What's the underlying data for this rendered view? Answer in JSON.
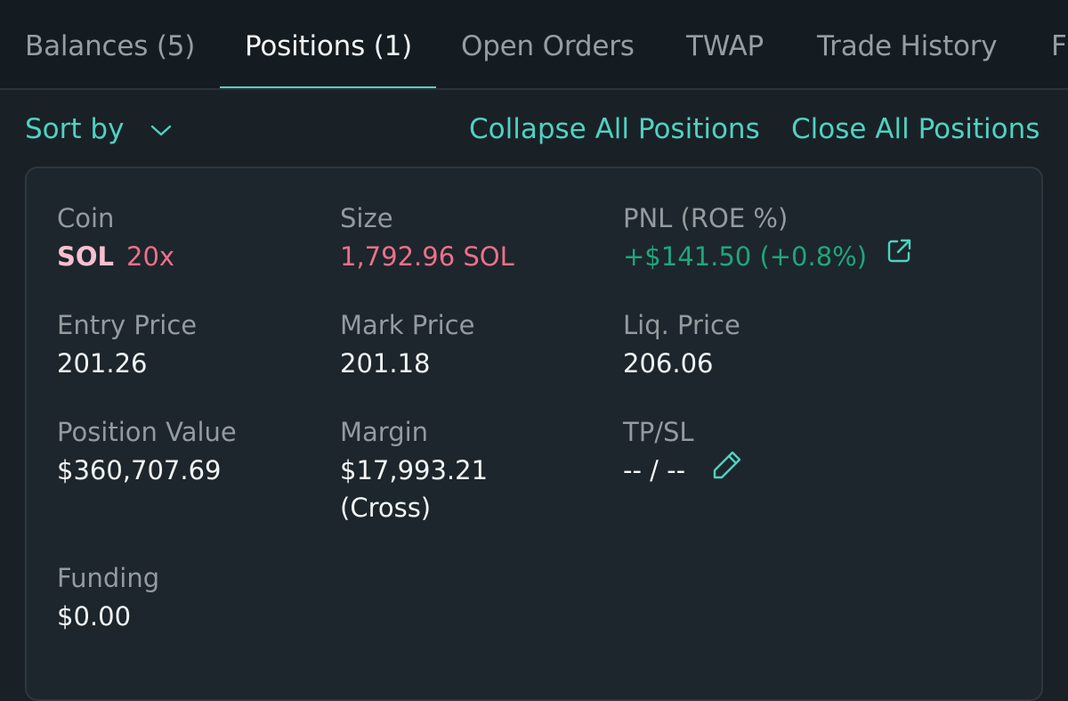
{
  "tabs": [
    {
      "label": "Balances (5)"
    },
    {
      "label": "Positions (1)"
    },
    {
      "label": "Open Orders"
    },
    {
      "label": "TWAP"
    },
    {
      "label": "Trade History"
    },
    {
      "label": "F"
    }
  ],
  "active_tab": "Positions (1)",
  "toolbar": {
    "sort_label": "Sort by",
    "collapse_label": "Collapse All Positions",
    "close_label": "Close All Positions"
  },
  "position": {
    "coin": {
      "label": "Coin",
      "symbol": "SOL",
      "leverage": "20x"
    },
    "size": {
      "label": "Size",
      "value": "1,792.96 SOL"
    },
    "pnl": {
      "label": "PNL (ROE %)",
      "value": "+$141.50 (+0.8%)"
    },
    "entry_price": {
      "label": "Entry Price",
      "value": "201.26"
    },
    "mark_price": {
      "label": "Mark Price",
      "value": "201.18"
    },
    "liq_price": {
      "label": "Liq. Price",
      "value": "206.06"
    },
    "position_value": {
      "label": "Position Value",
      "value": "$360,707.69"
    },
    "margin": {
      "label": "Margin",
      "value": "$17,993.21",
      "mode": "(Cross)"
    },
    "tpsl": {
      "label": "TP/SL",
      "value": "-- / --"
    },
    "funding": {
      "label": "Funding",
      "value": "$0.00"
    }
  },
  "colors": {
    "accent": "#50d2c1",
    "short": "#ed7088",
    "profit": "#1fa67d",
    "background": "#192127"
  },
  "icons": {
    "sort_chevron": "chevron-down-icon",
    "pnl_share": "external-link-icon",
    "tpsl_edit": "pencil-icon"
  }
}
